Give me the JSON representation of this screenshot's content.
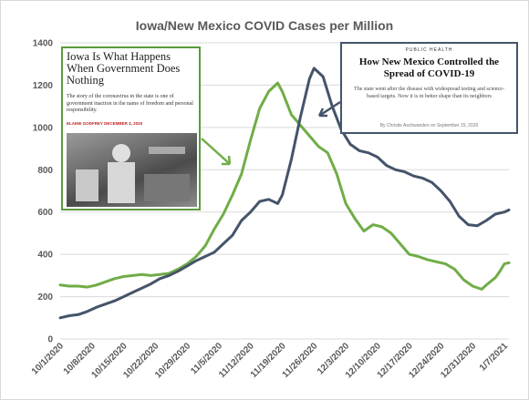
{
  "chart_data": {
    "type": "line",
    "title": "Iowa/New Mexico COVID Cases per Million",
    "xlabel": "",
    "ylabel": "",
    "ylim": [
      0,
      1400
    ],
    "yticks": [
      0,
      200,
      400,
      600,
      800,
      1000,
      1200,
      1400
    ],
    "x_tick_labels": [
      "10/1/2020",
      "10/8/2020",
      "10/15/2020",
      "10/22/2020",
      "10/29/2020",
      "11/5/2020",
      "11/12/2020",
      "11/19/2020",
      "11/26/2020",
      "12/3/2020",
      "12/10/2020",
      "12/17/2020",
      "12/24/2020",
      "12/31/2020",
      "1/7/2021"
    ],
    "x_start": "10/1/2020",
    "x_end": "1/8/2021",
    "grid": true,
    "series": [
      {
        "color": "#70ad47",
        "points": [
          [
            "10/1/2020",
            255
          ],
          [
            "10/3/2020",
            250
          ],
          [
            "10/5/2020",
            250
          ],
          [
            "10/7/2020",
            245
          ],
          [
            "10/9/2020",
            255
          ],
          [
            "10/11/2020",
            270
          ],
          [
            "10/13/2020",
            285
          ],
          [
            "10/15/2020",
            295
          ],
          [
            "10/17/2020",
            300
          ],
          [
            "10/19/2020",
            305
          ],
          [
            "10/21/2020",
            300
          ],
          [
            "10/23/2020",
            305
          ],
          [
            "10/25/2020",
            310
          ],
          [
            "10/27/2020",
            330
          ],
          [
            "10/29/2020",
            355
          ],
          [
            "10/31/2020",
            390
          ],
          [
            "11/2/2020",
            440
          ],
          [
            "11/4/2020",
            520
          ],
          [
            "11/6/2020",
            590
          ],
          [
            "11/8/2020",
            680
          ],
          [
            "11/10/2020",
            780
          ],
          [
            "11/12/2020",
            940
          ],
          [
            "11/14/2020",
            1090
          ],
          [
            "11/16/2020",
            1170
          ],
          [
            "11/18/2020",
            1210
          ],
          [
            "11/19/2020",
            1170
          ],
          [
            "11/21/2020",
            1060
          ],
          [
            "11/23/2020",
            1010
          ],
          [
            "11/25/2020",
            960
          ],
          [
            "11/27/2020",
            910
          ],
          [
            "11/29/2020",
            880
          ],
          [
            "12/1/2020",
            780
          ],
          [
            "12/3/2020",
            640
          ],
          [
            "12/5/2020",
            570
          ],
          [
            "12/7/2020",
            510
          ],
          [
            "12/9/2020",
            540
          ],
          [
            "12/11/2020",
            530
          ],
          [
            "12/13/2020",
            500
          ],
          [
            "12/15/2020",
            450
          ],
          [
            "12/17/2020",
            400
          ],
          [
            "12/19/2020",
            390
          ],
          [
            "12/21/2020",
            375
          ],
          [
            "12/23/2020",
            365
          ],
          [
            "12/25/2020",
            355
          ],
          [
            "12/27/2020",
            330
          ],
          [
            "12/29/2020",
            280
          ],
          [
            "12/31/2020",
            250
          ],
          [
            "1/2/2021",
            235
          ],
          [
            "1/3/2021",
            255
          ],
          [
            "1/5/2021",
            290
          ],
          [
            "1/6/2021",
            320
          ],
          [
            "1/7/2021",
            355
          ],
          [
            "1/8/2021",
            360
          ]
        ]
      },
      {
        "color": "#44546a",
        "points": [
          [
            "10/1/2020",
            100
          ],
          [
            "10/3/2020",
            110
          ],
          [
            "10/5/2020",
            115
          ],
          [
            "10/7/2020",
            130
          ],
          [
            "10/9/2020",
            150
          ],
          [
            "10/11/2020",
            165
          ],
          [
            "10/13/2020",
            180
          ],
          [
            "10/15/2020",
            200
          ],
          [
            "10/17/2020",
            220
          ],
          [
            "10/19/2020",
            240
          ],
          [
            "10/21/2020",
            260
          ],
          [
            "10/23/2020",
            285
          ],
          [
            "10/25/2020",
            300
          ],
          [
            "10/27/2020",
            320
          ],
          [
            "10/29/2020",
            345
          ],
          [
            "10/31/2020",
            370
          ],
          [
            "11/2/2020",
            390
          ],
          [
            "11/4/2020",
            410
          ],
          [
            "11/6/2020",
            450
          ],
          [
            "11/8/2020",
            490
          ],
          [
            "11/10/2020",
            560
          ],
          [
            "11/12/2020",
            600
          ],
          [
            "11/14/2020",
            650
          ],
          [
            "11/16/2020",
            660
          ],
          [
            "11/18/2020",
            640
          ],
          [
            "11/19/2020",
            680
          ],
          [
            "11/21/2020",
            850
          ],
          [
            "11/23/2020",
            1050
          ],
          [
            "11/25/2020",
            1230
          ],
          [
            "11/26/2020",
            1280
          ],
          [
            "11/28/2020",
            1240
          ],
          [
            "11/30/2020",
            1100
          ],
          [
            "12/2/2020",
            990
          ],
          [
            "12/4/2020",
            920
          ],
          [
            "12/6/2020",
            890
          ],
          [
            "12/8/2020",
            880
          ],
          [
            "12/10/2020",
            860
          ],
          [
            "12/12/2020",
            820
          ],
          [
            "12/14/2020",
            800
          ],
          [
            "12/16/2020",
            790
          ],
          [
            "12/18/2020",
            770
          ],
          [
            "12/20/2020",
            760
          ],
          [
            "12/22/2020",
            740
          ],
          [
            "12/24/2020",
            700
          ],
          [
            "12/26/2020",
            650
          ],
          [
            "12/28/2020",
            580
          ],
          [
            "12/30/2020",
            540
          ],
          [
            "1/1/2021",
            535
          ],
          [
            "1/3/2021",
            560
          ],
          [
            "1/5/2021",
            590
          ],
          [
            "1/7/2021",
            600
          ],
          [
            "1/8/2021",
            610
          ]
        ]
      }
    ]
  },
  "iowa_card": {
    "title": "Iowa Is What Happens When Government Does Nothing",
    "subtitle": "The story of the coronavirus in the state is one of government inaction in the name of freedom and personal responsibility.",
    "byline": "ELAINE GODFREY   DECEMBER 3, 2020",
    "photo_icon": "lab-workers-photo",
    "border_color": "#5b9a3c"
  },
  "nm_card": {
    "kicker": "PUBLIC HEALTH",
    "title": "How New Mexico Controlled the Spread of COVID-19",
    "subtitle": "The state went after the disease with widespread testing and science-based targets. Now it is in better shape than its neighbors",
    "byline": "By Christie Aschwanden on September 15, 2020",
    "border_color": "#44546a"
  }
}
